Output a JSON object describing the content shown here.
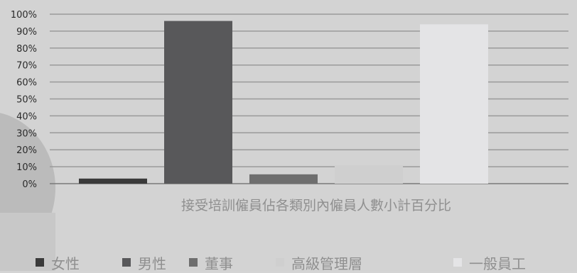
{
  "chart_data": {
    "type": "bar",
    "title": "",
    "xlabel": "接受培訓僱員佔各類別內僱員人數小計百分比",
    "ylabel": "",
    "ylim": [
      0,
      100
    ],
    "y_tick_labels": [
      "0%",
      "10%",
      "20%",
      "30%",
      "40%",
      "50%",
      "60%",
      "70%",
      "80%",
      "90%",
      "100%"
    ],
    "grid": true,
    "legend_position": "bottom",
    "series": [
      {
        "name": "女性",
        "value": 3,
        "color": "#3a3a3a"
      },
      {
        "name": "男性",
        "value": 96,
        "color": "#58585a"
      },
      {
        "name": "董事",
        "value": 5.5,
        "color": "#6e6e6e"
      },
      {
        "name": "高級管理層",
        "value": 11,
        "color": "#cfcfcf"
      },
      {
        "name": "一般員工",
        "value": 94,
        "color": "#e4e4e6"
      }
    ]
  }
}
